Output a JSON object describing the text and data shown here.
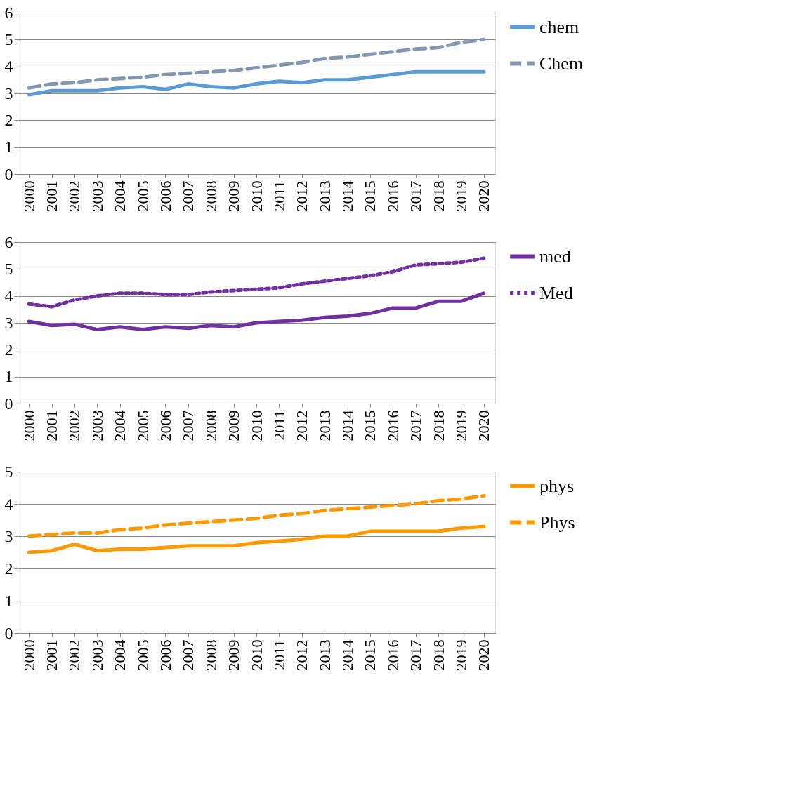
{
  "chart_data": [
    {
      "type": "line",
      "categories": [
        "2000",
        "2001",
        "2002",
        "2003",
        "2004",
        "2005",
        "2006",
        "2007",
        "2008",
        "2009",
        "2010",
        "2011",
        "2012",
        "2013",
        "2014",
        "2015",
        "2016",
        "2017",
        "2018",
        "2019",
        "2020"
      ],
      "ylim": [
        0,
        6
      ],
      "yticks": [
        0,
        1,
        2,
        3,
        4,
        5,
        6
      ],
      "grid": "y",
      "legend": "right",
      "series": [
        {
          "name": "chem",
          "color": "#5b9bd5",
          "line_style": "solid",
          "values": [
            2.95,
            3.1,
            3.1,
            3.1,
            3.2,
            3.25,
            3.15,
            3.35,
            3.25,
            3.2,
            3.35,
            3.45,
            3.4,
            3.5,
            3.5,
            3.6,
            3.7,
            3.8,
            3.8,
            3.8,
            3.8
          ]
        },
        {
          "name": "Chem",
          "color": "#8497b0",
          "line_style": "dashed",
          "values": [
            3.2,
            3.35,
            3.4,
            3.5,
            3.55,
            3.6,
            3.7,
            3.75,
            3.8,
            3.85,
            3.95,
            4.05,
            4.15,
            4.3,
            4.35,
            4.45,
            4.55,
            4.65,
            4.7,
            4.9,
            5.0
          ]
        }
      ]
    },
    {
      "type": "line",
      "categories": [
        "2000",
        "2001",
        "2002",
        "2003",
        "2004",
        "2005",
        "2006",
        "2007",
        "2008",
        "2009",
        "2010",
        "2011",
        "2012",
        "2013",
        "2014",
        "2015",
        "2016",
        "2017",
        "2018",
        "2019",
        "2020"
      ],
      "ylim": [
        0,
        6
      ],
      "yticks": [
        0,
        1,
        2,
        3,
        4,
        5,
        6
      ],
      "grid": "y",
      "legend": "right",
      "series": [
        {
          "name": "med",
          "color": "#7030a0",
          "line_style": "solid",
          "values": [
            3.05,
            2.9,
            2.95,
            2.75,
            2.85,
            2.75,
            2.85,
            2.8,
            2.9,
            2.85,
            3.0,
            3.05,
            3.1,
            3.2,
            3.25,
            3.35,
            3.55,
            3.55,
            3.8,
            3.8,
            4.1
          ]
        },
        {
          "name": "Med",
          "color": "#7030a0",
          "line_style": "dotted",
          "values": [
            3.7,
            3.6,
            3.85,
            4.0,
            4.1,
            4.1,
            4.05,
            4.05,
            4.15,
            4.2,
            4.25,
            4.3,
            4.45,
            4.55,
            4.65,
            4.75,
            4.9,
            5.15,
            5.2,
            5.25,
            5.4
          ]
        }
      ]
    },
    {
      "type": "line",
      "categories": [
        "2000",
        "2001",
        "2002",
        "2003",
        "2004",
        "2005",
        "2006",
        "2007",
        "2008",
        "2009",
        "2010",
        "2011",
        "2012",
        "2013",
        "2014",
        "2015",
        "2016",
        "2017",
        "2018",
        "2019",
        "2020"
      ],
      "ylim": [
        0,
        5
      ],
      "yticks": [
        0,
        1,
        2,
        3,
        4,
        5
      ],
      "grid": "y",
      "legend": "right",
      "series": [
        {
          "name": "phys",
          "color": "#ff9900",
          "line_style": "solid",
          "values": [
            2.5,
            2.55,
            2.75,
            2.55,
            2.6,
            2.6,
            2.65,
            2.7,
            2.7,
            2.7,
            2.8,
            2.85,
            2.9,
            3.0,
            3.0,
            3.15,
            3.15,
            3.15,
            3.15,
            3.25,
            3.3
          ]
        },
        {
          "name": "Phys",
          "color": "#ff9900",
          "line_style": "dashed",
          "values": [
            3.0,
            3.05,
            3.1,
            3.1,
            3.2,
            3.25,
            3.35,
            3.4,
            3.45,
            3.5,
            3.55,
            3.65,
            3.7,
            3.8,
            3.85,
            3.9,
            3.95,
            4.0,
            4.1,
            4.15,
            4.25
          ]
        }
      ]
    }
  ]
}
